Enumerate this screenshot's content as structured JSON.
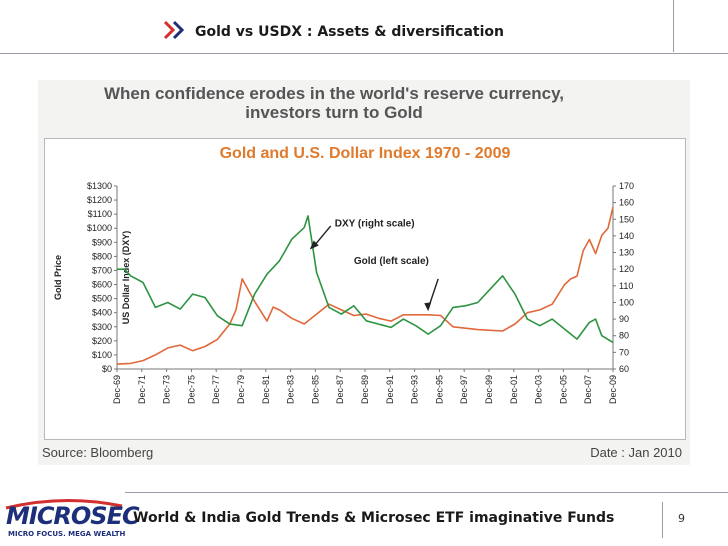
{
  "header": {
    "title": "Gold vs USDX : Assets & diversification"
  },
  "figure": {
    "headline": "When confidence erodes in the world's reserve currency, investors turn to Gold",
    "source": "Source: Bloomberg",
    "date": "Date : Jan 2010"
  },
  "colors": {
    "gold": "#e0683a",
    "dxy": "#2e9442",
    "title": "#e07a2c",
    "brand": "#1d2f7a",
    "accent": "#d32f2f"
  },
  "chart_data": {
    "type": "line",
    "title": "Gold and U.S. Dollar Index 1970 - 2009",
    "ylabel_left": "Gold Price",
    "ylabel_right": "US Dollar Index (DXY)",
    "y_left_ticks": [
      "$0",
      "$100",
      "$200",
      "$300",
      "$400",
      "$500",
      "$600",
      "$700",
      "$800",
      "$900",
      "$1000",
      "$1100",
      "$1200",
      "$1300"
    ],
    "y_left_range": [
      0,
      1300
    ],
    "y_right_ticks": [
      "60",
      "70",
      "80",
      "90",
      "100",
      "110",
      "120",
      "130",
      "140",
      "150",
      "160",
      "170"
    ],
    "y_right_range": [
      60,
      170
    ],
    "x_ticks": [
      "Dec-69",
      "Dec-71",
      "Dec-73",
      "Dec-75",
      "Dec-77",
      "Dec-79",
      "Dec-81",
      "Dec-83",
      "Dec-85",
      "Dec-87",
      "Dec-89",
      "Dec-91",
      "Dec-93",
      "Dec-95",
      "Dec-97",
      "Dec-99",
      "Dec-01",
      "Dec-03",
      "Dec-05",
      "Dec-07",
      "Dec-09"
    ],
    "x_range": [
      1969.9,
      2009.9
    ],
    "annotations": [
      {
        "text": "DXY (right scale)",
        "series": "DXY",
        "x": 1985.2,
        "y": 133
      },
      {
        "text": "Gold (left scale)",
        "series": "Gold",
        "x": 1995.0,
        "y": 400
      }
    ],
    "series": [
      {
        "name": "Gold",
        "axis": "left",
        "points": [
          [
            1969.9,
            35
          ],
          [
            1971,
            40
          ],
          [
            1972,
            60
          ],
          [
            1973,
            100
          ],
          [
            1974,
            150
          ],
          [
            1975,
            170
          ],
          [
            1976,
            130
          ],
          [
            1977,
            160
          ],
          [
            1978,
            210
          ],
          [
            1979,
            320
          ],
          [
            1979.5,
            420
          ],
          [
            1980.0,
            640
          ],
          [
            1980.5,
            560
          ],
          [
            1981,
            480
          ],
          [
            1982,
            340
          ],
          [
            1982.5,
            440
          ],
          [
            1983,
            420
          ],
          [
            1984,
            360
          ],
          [
            1985,
            320
          ],
          [
            1986,
            390
          ],
          [
            1987,
            460
          ],
          [
            1988,
            420
          ],
          [
            1989,
            380
          ],
          [
            1990,
            390
          ],
          [
            1991,
            360
          ],
          [
            1992,
            340
          ],
          [
            1993,
            385
          ],
          [
            1994,
            385
          ],
          [
            1995,
            385
          ],
          [
            1996,
            380
          ],
          [
            1997,
            300
          ],
          [
            1998,
            290
          ],
          [
            1999,
            280
          ],
          [
            2000,
            275
          ],
          [
            2001,
            270
          ],
          [
            2002,
            320
          ],
          [
            2003,
            400
          ],
          [
            2004,
            420
          ],
          [
            2005,
            460
          ],
          [
            2006,
            600
          ],
          [
            2006.5,
            640
          ],
          [
            2007,
            660
          ],
          [
            2007.5,
            840
          ],
          [
            2008,
            920
          ],
          [
            2008.5,
            820
          ],
          [
            2009,
            950
          ],
          [
            2009.5,
            1000
          ],
          [
            2009.9,
            1150
          ]
        ]
      },
      {
        "name": "DXY",
        "axis": "right",
        "points": [
          [
            1969.9,
            120
          ],
          [
            1970.5,
            120
          ],
          [
            1971,
            116
          ],
          [
            1972,
            112
          ],
          [
            1973,
            97
          ],
          [
            1974,
            100
          ],
          [
            1975,
            96
          ],
          [
            1976,
            105
          ],
          [
            1977,
            103
          ],
          [
            1978,
            92
          ],
          [
            1979,
            87
          ],
          [
            1980,
            86
          ],
          [
            1981,
            105
          ],
          [
            1982,
            117
          ],
          [
            1983,
            125
          ],
          [
            1984,
            138
          ],
          [
            1985.0,
            145
          ],
          [
            1985.3,
            152
          ],
          [
            1986,
            118
          ],
          [
            1987,
            97
          ],
          [
            1988,
            93
          ],
          [
            1989,
            98
          ],
          [
            1990,
            89
          ],
          [
            1991,
            87
          ],
          [
            1992,
            85
          ],
          [
            1993,
            90
          ],
          [
            1994,
            86
          ],
          [
            1995,
            81
          ],
          [
            1996,
            86
          ],
          [
            1997,
            97
          ],
          [
            1998,
            98
          ],
          [
            1999,
            100
          ],
          [
            2000,
            108
          ],
          [
            2001,
            116
          ],
          [
            2002,
            105
          ],
          [
            2003,
            90
          ],
          [
            2004,
            86
          ],
          [
            2005,
            90
          ],
          [
            2006,
            84
          ],
          [
            2007,
            78
          ],
          [
            2008,
            88
          ],
          [
            2008.5,
            90
          ],
          [
            2009,
            80
          ],
          [
            2009.9,
            76
          ]
        ]
      }
    ]
  },
  "footer": {
    "brand": "MICROSEC",
    "tagline": "MICRO FOCUS. MEGA WEALTH",
    "text": "World & India Gold Trends & Microsec ETF imaginative Funds",
    "page": "9"
  }
}
